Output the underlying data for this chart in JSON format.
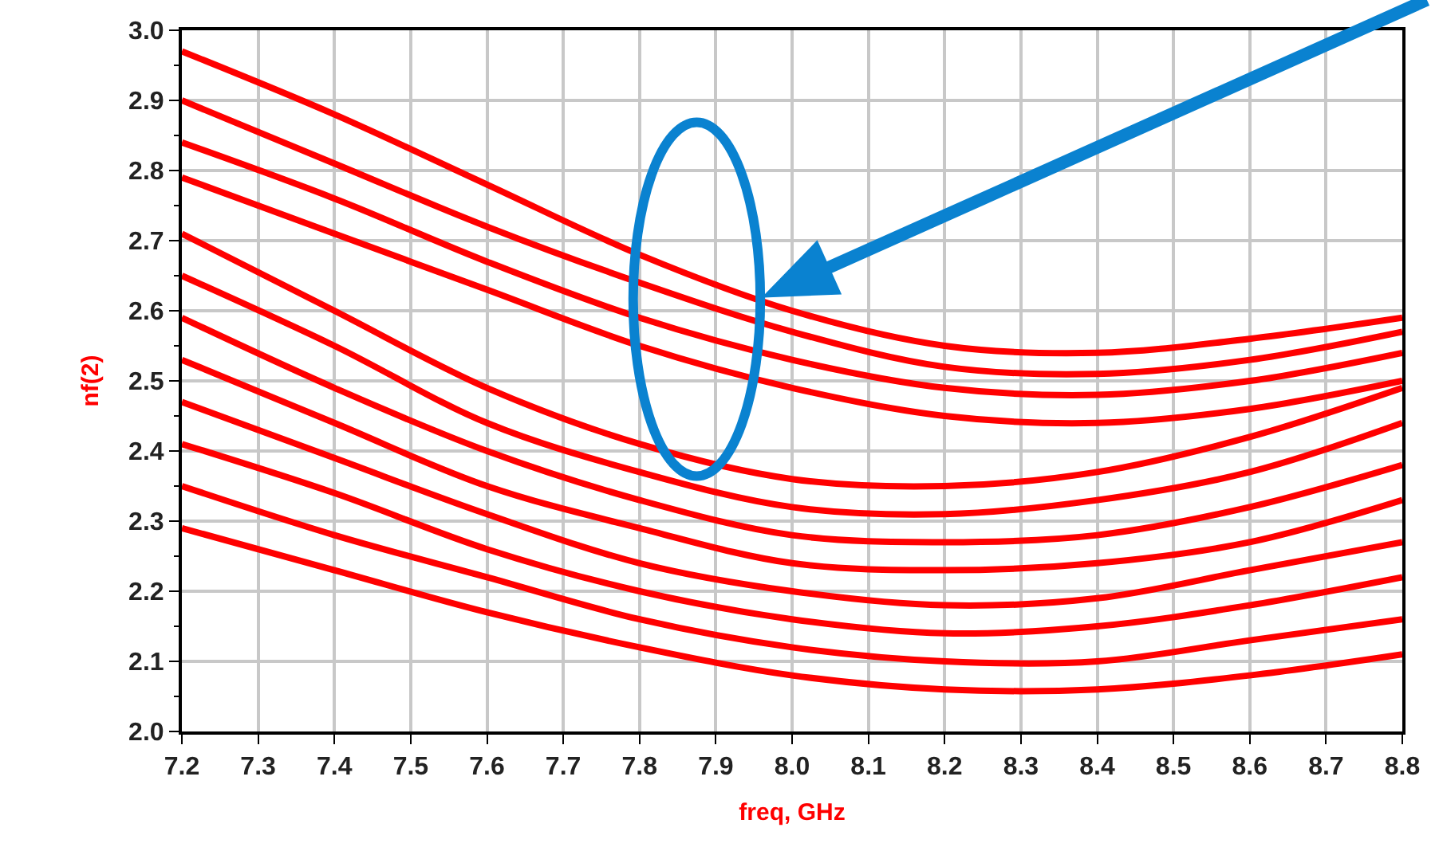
{
  "chart_data": {
    "type": "line",
    "xlabel": "freq, GHz",
    "ylabel": "nf(2)",
    "x": [
      7.2,
      7.4,
      7.6,
      7.8,
      8.0,
      8.2,
      8.4,
      8.6,
      8.8
    ],
    "series": [
      {
        "color": "#ff0000",
        "values": [
          2.97,
          2.88,
          2.78,
          2.68,
          2.6,
          2.55,
          2.54,
          2.56,
          2.59
        ]
      },
      {
        "color": "#ff0000",
        "values": [
          2.9,
          2.81,
          2.72,
          2.64,
          2.57,
          2.52,
          2.51,
          2.53,
          2.57
        ]
      },
      {
        "color": "#ff0000",
        "values": [
          2.84,
          2.76,
          2.67,
          2.59,
          2.53,
          2.49,
          2.48,
          2.5,
          2.54
        ]
      },
      {
        "color": "#ff0000",
        "values": [
          2.79,
          2.71,
          2.63,
          2.55,
          2.49,
          2.45,
          2.44,
          2.46,
          2.5
        ]
      },
      {
        "color": "#ff0000",
        "values": [
          2.71,
          2.6,
          2.49,
          2.41,
          2.36,
          2.35,
          2.37,
          2.42,
          2.49
        ]
      },
      {
        "color": "#ff0000",
        "values": [
          2.65,
          2.55,
          2.44,
          2.37,
          2.32,
          2.31,
          2.33,
          2.37,
          2.44
        ]
      },
      {
        "color": "#ff0000",
        "values": [
          2.59,
          2.49,
          2.4,
          2.33,
          2.28,
          2.27,
          2.28,
          2.32,
          2.38
        ]
      },
      {
        "color": "#ff0000",
        "values": [
          2.53,
          2.44,
          2.35,
          2.29,
          2.24,
          2.23,
          2.24,
          2.27,
          2.33
        ]
      },
      {
        "color": "#ff0000",
        "values": [
          2.47,
          2.39,
          2.31,
          2.24,
          2.2,
          2.18,
          2.19,
          2.23,
          2.27
        ]
      },
      {
        "color": "#ff0000",
        "values": [
          2.41,
          2.34,
          2.26,
          2.2,
          2.16,
          2.14,
          2.15,
          2.18,
          2.22
        ]
      },
      {
        "color": "#ff0000",
        "values": [
          2.35,
          2.28,
          2.22,
          2.16,
          2.12,
          2.1,
          2.1,
          2.13,
          2.16
        ]
      },
      {
        "color": "#ff0000",
        "values": [
          2.29,
          2.23,
          2.17,
          2.12,
          2.08,
          2.06,
          2.06,
          2.08,
          2.11
        ]
      }
    ],
    "xlim": [
      7.2,
      8.8
    ],
    "xticks": [
      7.2,
      7.3,
      7.4,
      7.5,
      7.6,
      7.7,
      7.8,
      7.9,
      {
        "value": 8.0,
        "label": "8.0"
      },
      8.1,
      8.2,
      8.3,
      8.4,
      8.5,
      8.6,
      8.7,
      8.8
    ],
    "ylim": [
      2.0,
      3.0
    ],
    "yticks": [
      {
        "value": 2.0,
        "label": "2.0"
      },
      2.1,
      2.2,
      2.3,
      2.4,
      2.5,
      2.6,
      2.7,
      2.8,
      2.9,
      {
        "value": 3.0,
        "label": "3.0"
      }
    ],
    "grid": true,
    "marker": "none",
    "line_style": "solid"
  }
}
